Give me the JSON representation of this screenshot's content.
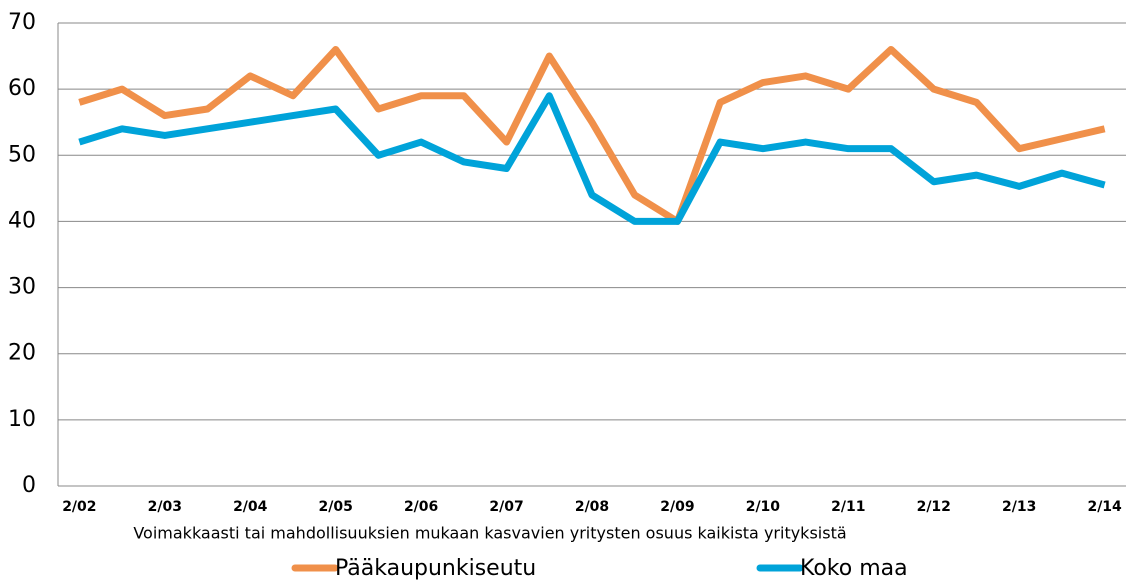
{
  "chart_data": {
    "type": "line",
    "x_label": "Voimakkaasti tai mahdollisuuksien mukaan kasvavien yritysten osuus kaikista yrityksistä",
    "categories": [
      "2/02",
      null,
      "2/03",
      null,
      "2/04",
      null,
      "2/05",
      null,
      "2/06",
      null,
      "2/07",
      null,
      "2/08",
      null,
      "2/09",
      null,
      "2/10",
      null,
      "2/11",
      null,
      "2/12",
      null,
      "2/13",
      null,
      "2/14"
    ],
    "series": [
      {
        "name": "Pääkaupunkiseutu",
        "color": "#f0904a",
        "values": [
          58,
          60,
          56,
          57,
          62,
          59,
          66,
          57,
          59,
          59,
          52,
          65,
          55,
          44,
          40,
          58,
          61,
          62,
          60,
          66,
          60,
          58,
          51,
          52.5,
          54
        ]
      },
      {
        "name": "Koko maa",
        "color": "#00a3d9",
        "values": [
          52,
          54,
          53,
          54,
          55,
          56,
          57,
          50,
          52,
          49,
          48,
          59,
          44,
          40,
          40,
          52,
          51,
          52,
          51,
          51,
          46,
          47,
          45.3,
          47.3,
          45.5
        ]
      }
    ],
    "ylim": [
      0,
      70
    ],
    "yticks": [
      0,
      10,
      20,
      30,
      40,
      50,
      60,
      70
    ],
    "grid": true,
    "legend": "bottom"
  }
}
